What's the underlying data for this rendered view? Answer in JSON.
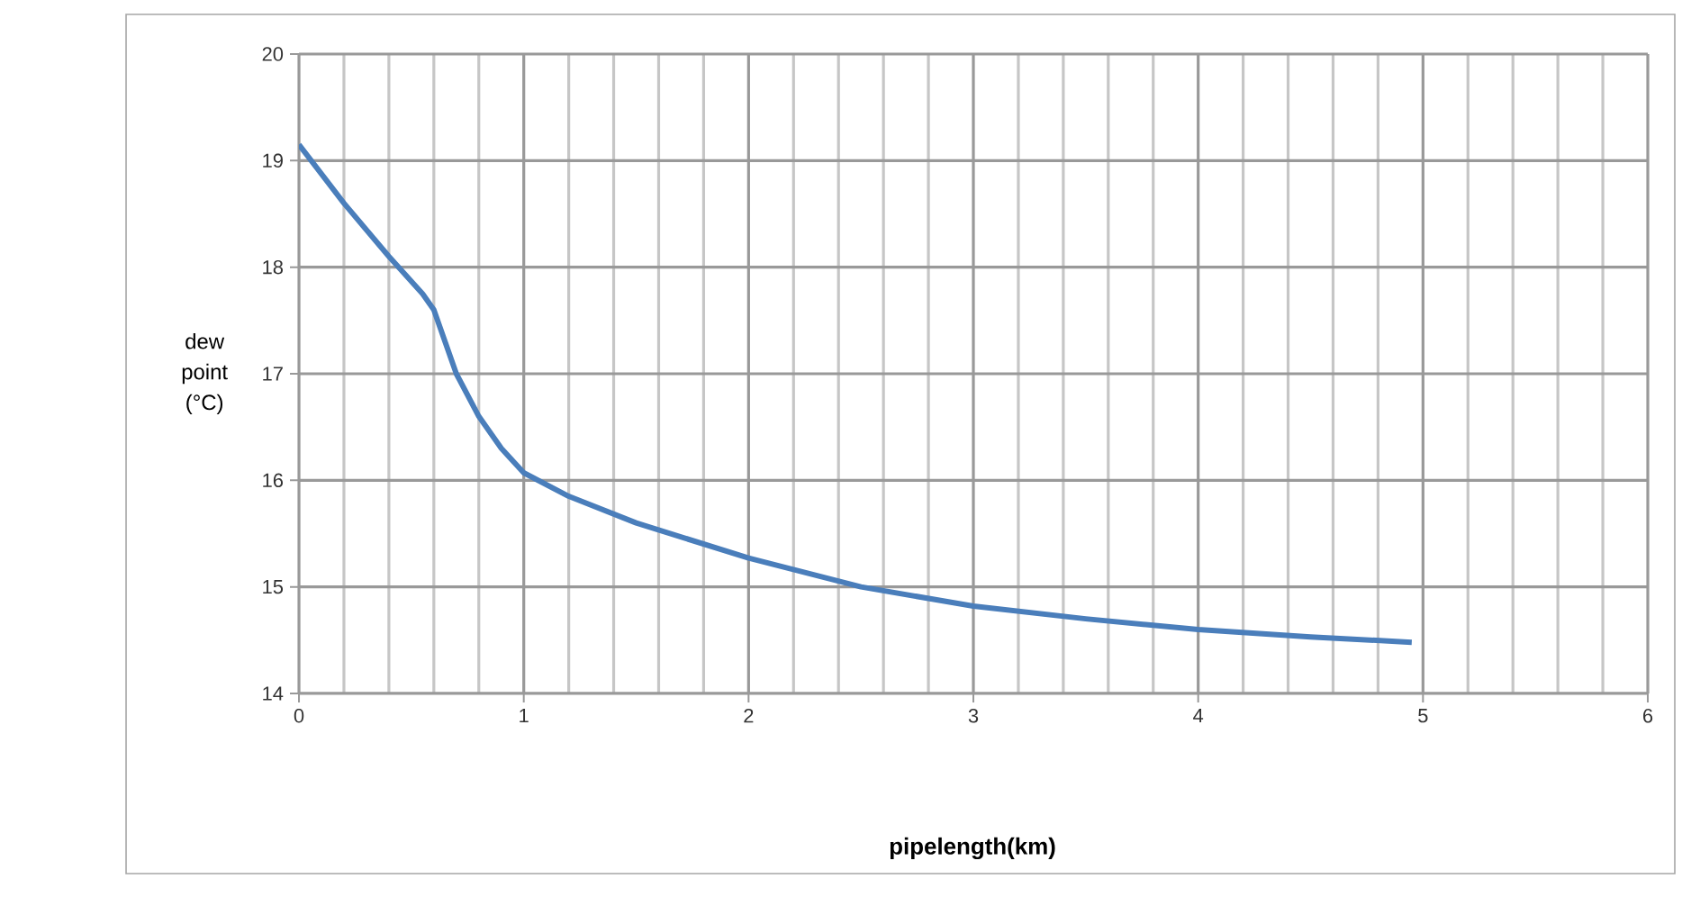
{
  "chart_data": {
    "type": "line",
    "xlabel": "pipelength(km)",
    "ylabel": "dew point (°C)",
    "x": [
      0,
      0.2,
      0.4,
      0.55,
      0.6,
      0.7,
      0.8,
      0.9,
      1.0,
      1.2,
      1.5,
      2.0,
      2.5,
      3.0,
      3.5,
      4.0,
      4.5,
      4.95
    ],
    "series": [
      {
        "color": "#4a7ebb",
        "values": [
          19.15,
          18.6,
          18.1,
          17.75,
          17.6,
          17.0,
          16.6,
          16.3,
          16.07,
          15.85,
          15.6,
          15.27,
          15.0,
          14.82,
          14.7,
          14.6,
          14.53,
          14.48
        ]
      }
    ],
    "xlim": [
      0,
      6
    ],
    "ylim": [
      14,
      20
    ],
    "xticks": [
      0,
      1,
      2,
      3,
      4,
      5,
      6
    ],
    "yticks": [
      14,
      15,
      16,
      17,
      18,
      19,
      20
    ],
    "grid": true,
    "marker": "none",
    "line_style": "solid"
  }
}
